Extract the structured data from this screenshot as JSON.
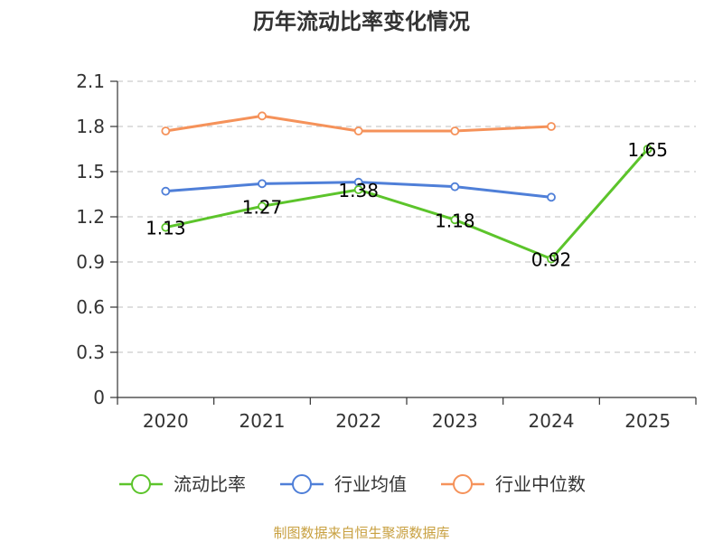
{
  "chart_data": {
    "type": "line",
    "title": "历年流动比率变化情况",
    "categories": [
      "2020",
      "2021",
      "2022",
      "2023",
      "2024",
      "2025"
    ],
    "ylim": [
      0,
      2.1
    ],
    "yticks": [
      "0",
      "0.3",
      "0.6",
      "0.9",
      "1.2",
      "1.5",
      "1.8",
      "2.1"
    ],
    "grid": true,
    "legend_position": "bottom",
    "series": [
      {
        "name": "流动比率",
        "color": "#5cc42b",
        "values": [
          1.13,
          1.27,
          1.38,
          1.18,
          0.92,
          1.65
        ],
        "labels": [
          "1.13",
          "1.27",
          "1.38",
          "1.18",
          "0.92",
          "1.65"
        ]
      },
      {
        "name": "行业均值",
        "color": "#4f7fd8",
        "values": [
          1.37,
          1.42,
          1.43,
          1.4,
          1.33,
          null
        ]
      },
      {
        "name": "行业中位数",
        "color": "#f5925a",
        "values": [
          1.77,
          1.87,
          1.77,
          1.77,
          1.8,
          null
        ]
      }
    ],
    "source": "制图数据来自恒生聚源数据库"
  }
}
